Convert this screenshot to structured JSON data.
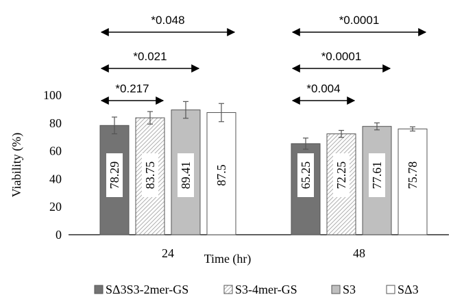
{
  "chart_data": {
    "type": "bar",
    "title": "",
    "xlabel": "Time (hr)",
    "ylabel": "Viability (%)",
    "ylim": [
      0,
      100
    ],
    "yticks": [
      0,
      20,
      40,
      60,
      80,
      100
    ],
    "categories": [
      "24",
      "48"
    ],
    "grid": false,
    "legend_position": "bottom",
    "series": [
      {
        "name": "SΔ3S3-2mer-GS",
        "values": [
          78.29,
          65.25
        ],
        "errors": [
          6.0,
          4.0
        ],
        "labels": [
          "78.29",
          "65.25"
        ],
        "fill": "#737373",
        "pattern": "solid"
      },
      {
        "name": "S3-4mer-GS",
        "values": [
          83.75,
          72.25
        ],
        "errors": [
          4.5,
          2.5
        ],
        "labels": [
          "83.75",
          "72.25"
        ],
        "fill": "#e6e6e6",
        "pattern": "hatch"
      },
      {
        "name": "S3",
        "values": [
          89.41,
          77.61
        ],
        "errors": [
          6.0,
          2.5
        ],
        "labels": [
          "89.41",
          "77.61"
        ],
        "fill": "#bfbfbf",
        "pattern": "solid"
      },
      {
        "name": "SΔ3",
        "values": [
          87.5,
          75.78
        ],
        "errors": [
          6.5,
          1.5
        ],
        "labels": [
          "87.5",
          "75.78"
        ],
        "fill": "#ffffff",
        "pattern": "solid"
      }
    ],
    "annotations": [
      {
        "category": 0,
        "from_series": 0,
        "to_series": 1,
        "text": "*0.217"
      },
      {
        "category": 0,
        "from_series": 0,
        "to_series": 2,
        "text": "*0.021"
      },
      {
        "category": 0,
        "from_series": 0,
        "to_series": 3,
        "text": "*0.048"
      },
      {
        "category": 1,
        "from_series": 0,
        "to_series": 1,
        "text": "*0.004"
      },
      {
        "category": 1,
        "from_series": 0,
        "to_series": 2,
        "text": "*0.0001"
      },
      {
        "category": 1,
        "from_series": 0,
        "to_series": 3,
        "text": "*0.0001"
      }
    ]
  }
}
